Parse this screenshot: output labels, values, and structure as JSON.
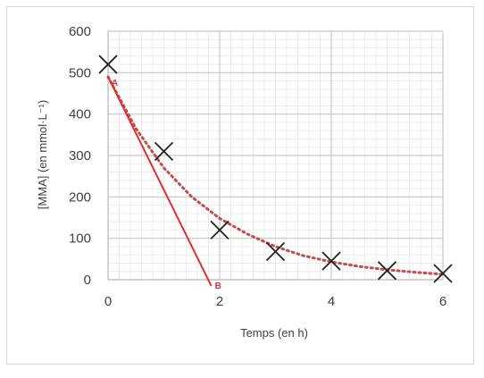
{
  "chart_data": {
    "type": "scatter",
    "xlabel": "Temps (en h)",
    "ylabel": "[MMA] (en mmol·L⁻¹)",
    "xlim": [
      0,
      6
    ],
    "ylim": [
      0,
      600
    ],
    "x_ticks": [
      "0",
      "2",
      "4",
      "6"
    ],
    "y_ticks": [
      "0",
      "100",
      "200",
      "300",
      "400",
      "500",
      "600"
    ],
    "grid": true,
    "minor_grid": true,
    "legend": "none",
    "series": [
      {
        "marker": "x",
        "color": "#222222",
        "x": [
          0,
          1,
          2,
          3,
          4,
          5,
          6
        ],
        "y": [
          520,
          310,
          120,
          68,
          45,
          22,
          15
        ]
      }
    ],
    "trendline": {
      "style": "dotted",
      "color": "#c0504d",
      "x": [
        0,
        0.5,
        1,
        1.5,
        2,
        2.5,
        3,
        3.5,
        4,
        4.5,
        5,
        5.5,
        6
      ],
      "y": [
        490,
        365,
        270,
        200,
        148,
        110,
        80,
        58,
        43,
        32,
        24,
        18,
        13
      ]
    },
    "tangent": {
      "style": "solid",
      "color": "#e03030",
      "x": [
        0,
        1.85
      ],
      "y": [
        490,
        -15
      ]
    },
    "annotations": [
      {
        "text": "A",
        "x": 0,
        "y": 490,
        "color": "#e03030"
      },
      {
        "text": "B",
        "x": 1.85,
        "y": 0,
        "color": "#e03030"
      }
    ]
  }
}
